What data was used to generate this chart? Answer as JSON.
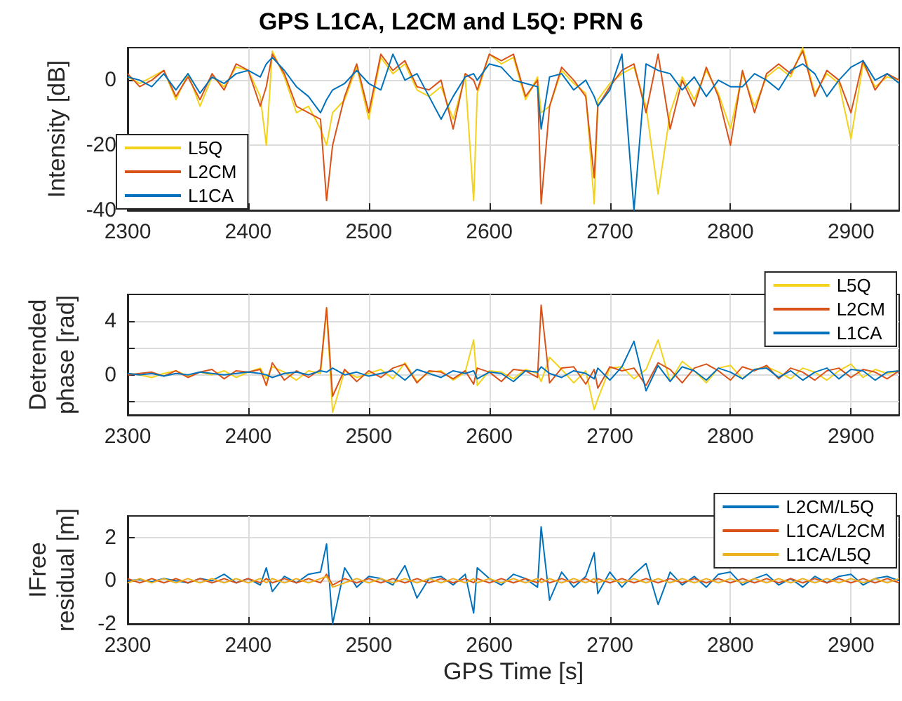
{
  "chart_data": [
    {
      "type": "line",
      "title": "GPS L1CA, L2CM and L5Q: PRN 6",
      "ylabel": "Intensity [dB]",
      "x": [
        2300,
        2310,
        2320,
        2330,
        2340,
        2350,
        2360,
        2370,
        2380,
        2390,
        2400,
        2410,
        2415,
        2420,
        2430,
        2440,
        2450,
        2460,
        2465,
        2470,
        2480,
        2490,
        2500,
        2510,
        2520,
        2530,
        2540,
        2550,
        2560,
        2570,
        2580,
        2587,
        2590,
        2600,
        2610,
        2620,
        2630,
        2640,
        2643,
        2650,
        2660,
        2670,
        2680,
        2687,
        2690,
        2700,
        2710,
        2720,
        2730,
        2740,
        2750,
        2760,
        2770,
        2780,
        2790,
        2800,
        2810,
        2820,
        2830,
        2840,
        2850,
        2860,
        2870,
        2880,
        2890,
        2900,
        2910,
        2920,
        2930,
        2940
      ],
      "series": [
        {
          "name": "L5Q",
          "color": "#f2d21b",
          "values": [
            1,
            -1,
            1,
            3,
            -6,
            2,
            -8,
            1,
            -2,
            4,
            3,
            -5,
            -20,
            9,
            1,
            -10,
            -8,
            -15,
            -20,
            -10,
            -6,
            4,
            -12,
            7,
            2,
            5,
            -3,
            -5,
            -2,
            -12,
            1,
            -37,
            -4,
            8,
            5,
            7,
            -6,
            1,
            -10,
            -8,
            3,
            -1,
            -4,
            -38,
            -6,
            -1,
            2,
            4,
            -8,
            -35,
            -10,
            1,
            -6,
            3,
            -4,
            -15,
            2,
            -8,
            1,
            4,
            1,
            10,
            -4,
            2,
            -1,
            -18,
            5,
            -2,
            1,
            0
          ]
        },
        {
          "name": "L2CM",
          "color": "#d95319",
          "values": [
            2,
            -2,
            0,
            3,
            -5,
            1,
            -6,
            2,
            -3,
            5,
            3,
            -8,
            -2,
            8,
            2,
            -8,
            -10,
            -12,
            -37,
            -20,
            -5,
            5,
            -10,
            8,
            3,
            6,
            -2,
            -3,
            0,
            -15,
            2,
            0,
            -3,
            8,
            6,
            8,
            -5,
            0,
            -38,
            -8,
            4,
            0,
            -5,
            -30,
            -8,
            -2,
            3,
            5,
            -10,
            8,
            -15,
            0,
            -8,
            4,
            -5,
            -20,
            3,
            -10,
            2,
            5,
            2,
            9,
            -5,
            3,
            0,
            -10,
            6,
            -3,
            2,
            0
          ]
        },
        {
          "name": "L1CA",
          "color": "#0072bd",
          "values": [
            1,
            0,
            -2,
            2,
            -3,
            2,
            -4,
            1,
            -1,
            2,
            3,
            1,
            5,
            7,
            3,
            -2,
            -5,
            -10,
            -6,
            -3,
            -1,
            3,
            -1,
            -3,
            8,
            0,
            2,
            -5,
            -12,
            -5,
            1,
            2,
            0,
            5,
            4,
            0,
            -1,
            -2,
            -15,
            1,
            2,
            -3,
            0,
            -5,
            -8,
            -3,
            8,
            -40,
            5,
            3,
            2,
            -3,
            1,
            -5,
            0,
            -2,
            -2,
            2,
            0,
            -3,
            3,
            5,
            2,
            -5,
            0,
            4,
            6,
            0,
            2,
            -1
          ]
        }
      ],
      "xlim": [
        2300,
        2940
      ],
      "xticks": [
        2300,
        2400,
        2500,
        2600,
        2700,
        2800,
        2900
      ],
      "ylim": [
        -40,
        10
      ],
      "yticks": [
        -40,
        -20,
        0
      ],
      "grid": true,
      "legend": "bottom left"
    },
    {
      "type": "line",
      "ylabel": "Detrended\nphase [rad]",
      "x": [
        2300,
        2310,
        2320,
        2330,
        2340,
        2350,
        2360,
        2370,
        2380,
        2390,
        2400,
        2410,
        2415,
        2420,
        2430,
        2440,
        2450,
        2460,
        2465,
        2470,
        2480,
        2490,
        2500,
        2510,
        2520,
        2530,
        2540,
        2550,
        2560,
        2570,
        2580,
        2587,
        2590,
        2600,
        2610,
        2620,
        2630,
        2640,
        2643,
        2650,
        2660,
        2670,
        2680,
        2687,
        2690,
        2700,
        2710,
        2720,
        2730,
        2740,
        2750,
        2760,
        2770,
        2780,
        2790,
        2800,
        2810,
        2820,
        2830,
        2840,
        2850,
        2860,
        2870,
        2880,
        2890,
        2900,
        2910,
        2920,
        2930,
        2940
      ],
      "series": [
        {
          "name": "L5Q",
          "color": "#f2d21b",
          "values": [
            0.1,
            0,
            -0.2,
            0.1,
            0.3,
            -0.1,
            0.2,
            0,
            0.3,
            -0.2,
            0.2,
            0.5,
            -0.3,
            0.6,
            0.2,
            -0.4,
            0.3,
            0.1,
            4.9,
            -2.8,
            0.3,
            -0.2,
            0.1,
            0.4,
            -0.3,
            0.9,
            -0.5,
            0.2,
            0.3,
            -0.4,
            0.2,
            2.6,
            -0.8,
            0.3,
            0.2,
            -0.3,
            0.4,
            0.1,
            -0.5,
            1.3,
            0.4,
            -0.6,
            0.3,
            -2.6,
            -1.8,
            0.5,
            0.6,
            -0.3,
            0.4,
            2.6,
            -0.5,
            1.0,
            0.3,
            -0.6,
            0.5,
            0.7,
            -0.3,
            0.4,
            0.6,
            0.2,
            -0.3,
            0.5,
            0.2,
            -0.4,
            0.3,
            0.8,
            -0.2,
            0.4,
            0.1,
            0.3
          ]
        },
        {
          "name": "L2CM",
          "color": "#d95319",
          "values": [
            0,
            0.1,
            0.2,
            -0.1,
            0.3,
            -0.2,
            0.2,
            0.4,
            -0.3,
            0.3,
            0.2,
            0.4,
            -0.8,
            0.9,
            -0.4,
            0.3,
            -0.2,
            0.4,
            5.0,
            -1.6,
            0.4,
            -0.5,
            0.3,
            -0.2,
            0.5,
            0.8,
            -0.6,
            0.3,
            0.2,
            -0.3,
            0.3,
            -0.7,
            0.5,
            0.2,
            -0.5,
            0.4,
            0.3,
            -0.2,
            5.2,
            -0.6,
            0.5,
            0.6,
            -0.7,
            0.4,
            -1.0,
            0.6,
            0.3,
            0.5,
            -0.8,
            0.9,
            0.4,
            -0.6,
            0.5,
            0.8,
            0.3,
            -0.4,
            0.6,
            0.3,
            0.7,
            -0.3,
            0.5,
            0.2,
            -0.4,
            0.3,
            0.5,
            -0.2,
            0.4,
            0.2,
            -0.3,
            0.3
          ]
        },
        {
          "name": "L1CA",
          "color": "#0072bd",
          "values": [
            0.1,
            0,
            0.1,
            -0.1,
            0.1,
            0,
            0.2,
            0.1,
            0,
            0.1,
            0.2,
            0.1,
            0,
            -0.2,
            0.1,
            0.2,
            0,
            0.3,
            0.2,
            0.5,
            0,
            0.2,
            -0.1,
            0.1,
            0.3,
            -0.4,
            0.4,
            0.1,
            -0.2,
            0.3,
            0.1,
            0.3,
            -0.3,
            0.2,
            0.1,
            -0.5,
            0.3,
            0.2,
            0.6,
            0.1,
            -0.2,
            0.3,
            0.1,
            -0.3,
            0.5,
            -0.4,
            0.6,
            2.5,
            -1.2,
            0.7,
            -0.5,
            0.6,
            0.3,
            -0.4,
            0.5,
            0.2,
            -0.3,
            0.4,
            0.5,
            -0.2,
            0.3,
            -0.4,
            0.2,
            0.5,
            -0.3,
            0.4,
            0.3,
            -0.4,
            0.2,
            0.3
          ]
        }
      ],
      "xlim": [
        2300,
        2940
      ],
      "xticks": [
        2300,
        2400,
        2500,
        2600,
        2700,
        2800,
        2900
      ],
      "ylim": [
        -3,
        6
      ],
      "yticks": [
        {
          "value": -2,
          "label": null
        },
        0,
        {
          "value": 2,
          "label": null
        },
        4
      ],
      "grid": true,
      "legend": "top right"
    },
    {
      "type": "line",
      "ylabel": "IFree\nresidual [m]",
      "xlabel": "GPS Time [s]",
      "x": [
        2300,
        2310,
        2320,
        2330,
        2340,
        2350,
        2360,
        2370,
        2380,
        2390,
        2400,
        2410,
        2415,
        2420,
        2430,
        2440,
        2450,
        2460,
        2465,
        2470,
        2480,
        2490,
        2500,
        2510,
        2520,
        2530,
        2540,
        2550,
        2560,
        2570,
        2580,
        2587,
        2590,
        2600,
        2610,
        2620,
        2630,
        2640,
        2643,
        2650,
        2660,
        2670,
        2680,
        2687,
        2690,
        2700,
        2710,
        2720,
        2730,
        2740,
        2750,
        2760,
        2770,
        2780,
        2790,
        2800,
        2810,
        2820,
        2830,
        2840,
        2850,
        2860,
        2870,
        2880,
        2890,
        2900,
        2910,
        2920,
        2930,
        2940
      ],
      "series": [
        {
          "name": "L2CM/L5Q",
          "color": "#0072bd",
          "values": [
            0,
            0.05,
            -0.05,
            0.1,
            0,
            -0.1,
            0.1,
            0,
            0.3,
            -0.1,
            0.1,
            -0.2,
            0.6,
            -0.5,
            0.2,
            -0.1,
            0.3,
            0.4,
            1.7,
            -2.0,
            0.6,
            -0.3,
            0.2,
            0.1,
            -0.2,
            0.7,
            -0.8,
            0.1,
            0.2,
            -0.2,
            0.3,
            -1.5,
            0.6,
            0.1,
            -0.2,
            0.3,
            0.1,
            -0.3,
            2.5,
            -0.9,
            0.4,
            -0.3,
            0.2,
            1.3,
            -0.6,
            0.4,
            -0.3,
            0.3,
            0.8,
            -1.1,
            0.4,
            -0.2,
            0.2,
            -0.3,
            0.3,
            0.4,
            -0.2,
            0.1,
            0.3,
            -0.2,
            0.1,
            -0.3,
            0.2,
            -0.1,
            0.2,
            0.3,
            -0.2,
            0.1,
            0.2,
            0
          ]
        },
        {
          "name": "L1CA/L2CM",
          "color": "#d95319",
          "values": [
            0.1,
            -0.1,
            0.1,
            -0.1,
            0.1,
            -0.1,
            0.1,
            -0.1,
            0.1,
            -0.1,
            0.1,
            -0.1,
            0.1,
            -0.1,
            0.1,
            -0.1,
            0.1,
            -0.1,
            0.3,
            -0.2,
            0.1,
            -0.1,
            0.1,
            -0.1,
            0.1,
            -0.1,
            0.1,
            -0.1,
            0.1,
            -0.1,
            0.1,
            -0.1,
            0.1,
            -0.1,
            0.1,
            -0.1,
            0.1,
            -0.1,
            0.1,
            -0.1,
            0.1,
            -0.1,
            0.1,
            -0.1,
            0.1,
            -0.1,
            0.1,
            -0.1,
            0.1,
            -0.1,
            0.1,
            -0.1,
            0.1,
            -0.1,
            0.1,
            -0.1,
            0.1,
            -0.1,
            0.1,
            -0.1,
            0.1,
            -0.1,
            0.1,
            -0.1,
            0.1,
            -0.1,
            0.1,
            -0.1,
            0.1,
            -0.1
          ]
        },
        {
          "name": "L1CA/L5Q",
          "color": "#edb120",
          "values": [
            -0.1,
            0.1,
            -0.1,
            0.1,
            -0.1,
            0.1,
            -0.1,
            0.1,
            -0.1,
            0.1,
            -0.1,
            0.1,
            -0.1,
            0.1,
            -0.1,
            0.1,
            -0.1,
            0.1,
            0.2,
            -0.3,
            -0.1,
            0.1,
            -0.1,
            0.1,
            -0.1,
            0.1,
            -0.1,
            0.1,
            -0.1,
            0.1,
            -0.1,
            0.1,
            -0.1,
            0.1,
            -0.1,
            0.1,
            -0.1,
            0.1,
            -0.1,
            0.1,
            -0.1,
            0.1,
            -0.1,
            0.1,
            -0.1,
            0.1,
            -0.1,
            0.1,
            -0.1,
            0.1,
            -0.1,
            0.1,
            -0.1,
            0.1,
            -0.1,
            0.1,
            -0.1,
            0.1,
            -0.1,
            0.1,
            -0.1,
            0.1,
            -0.1,
            0.1,
            -0.1,
            0.1,
            -0.1,
            0.1,
            -0.1,
            0.1
          ]
        }
      ],
      "xlim": [
        2300,
        2940
      ],
      "xticks": [
        2300,
        2400,
        2500,
        2600,
        2700,
        2800,
        2900
      ],
      "ylim": [
        -2,
        3
      ],
      "yticks": [
        -2,
        0,
        2
      ],
      "grid": true,
      "legend": "top right"
    }
  ]
}
